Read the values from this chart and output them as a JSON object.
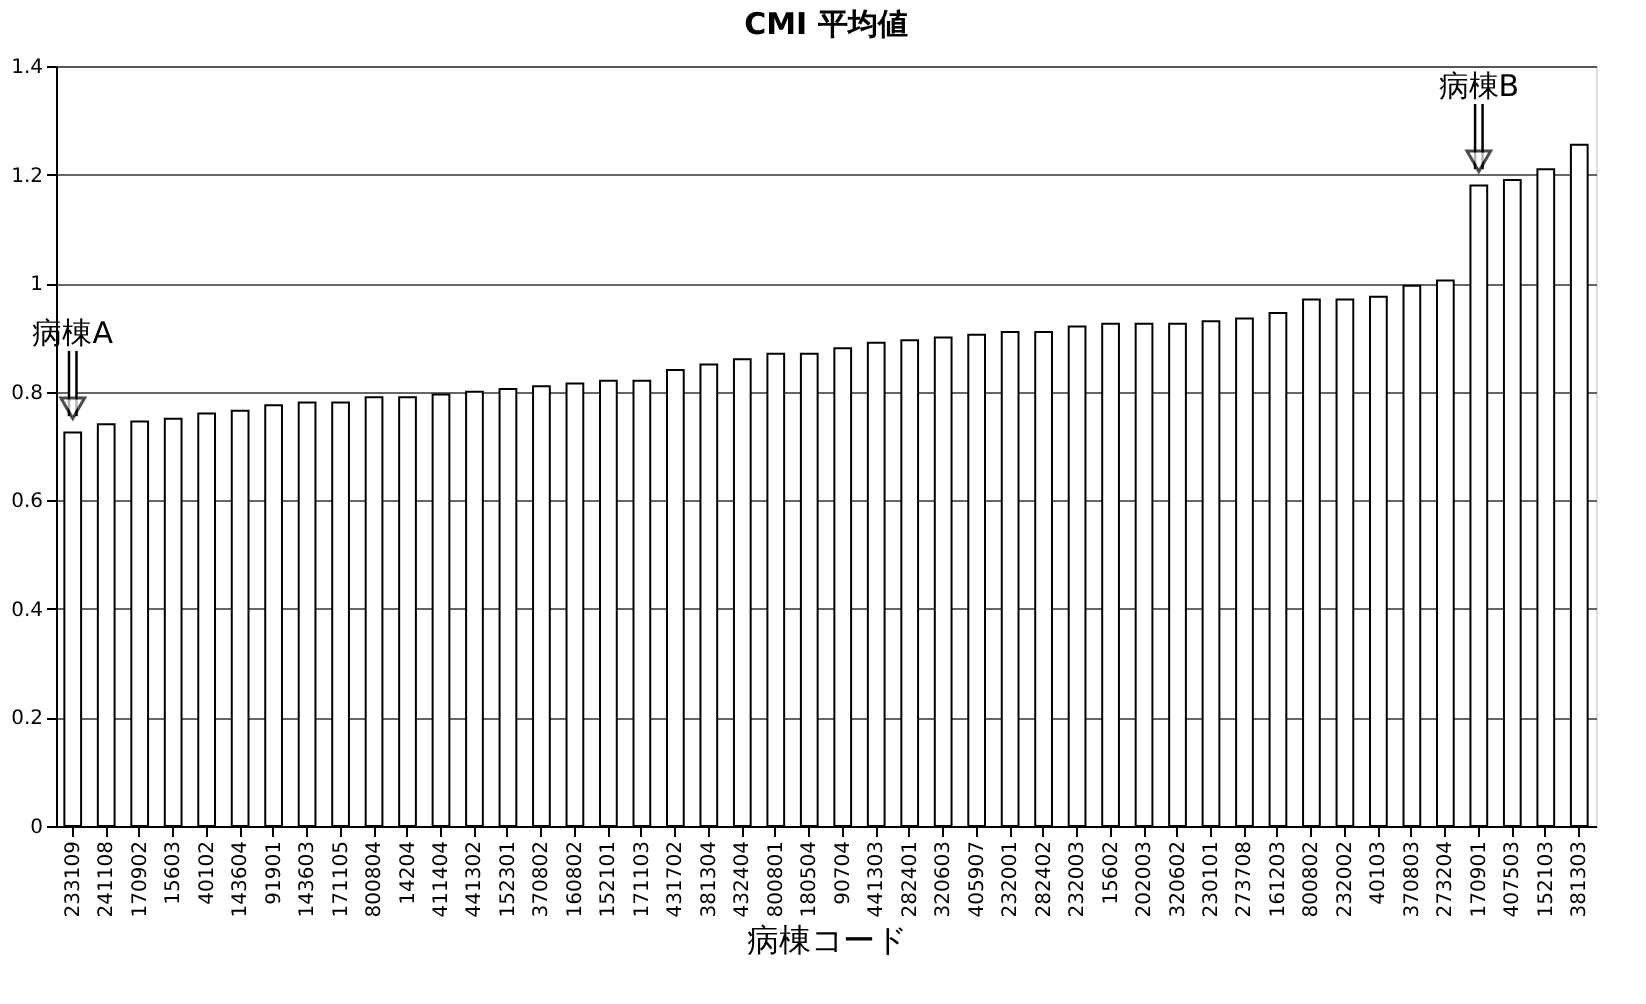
{
  "chart_data": {
    "type": "bar",
    "title": "CMI 平均値",
    "xlabel": "病棟コード",
    "categories": [
      "233109",
      "241108",
      "170902",
      "15603",
      "40102",
      "143604",
      "91901",
      "143603",
      "171105",
      "800804",
      "14204",
      "411404",
      "441302",
      "152301",
      "370802",
      "160802",
      "152101",
      "171103",
      "431702",
      "381304",
      "432404",
      "800801",
      "180504",
      "90704",
      "441303",
      "282401",
      "320603",
      "405907",
      "232001",
      "282402",
      "232003",
      "15602",
      "202003",
      "320602",
      "230101",
      "273708",
      "161203",
      "800802",
      "232002",
      "40103",
      "370803",
      "273204",
      "170901",
      "407503",
      "152103",
      "381303"
    ],
    "values": [
      0.725,
      0.74,
      0.745,
      0.75,
      0.76,
      0.765,
      0.775,
      0.78,
      0.78,
      0.79,
      0.79,
      0.795,
      0.8,
      0.805,
      0.81,
      0.815,
      0.82,
      0.82,
      0.84,
      0.85,
      0.86,
      0.87,
      0.87,
      0.88,
      0.89,
      0.895,
      0.9,
      0.905,
      0.91,
      0.91,
      0.92,
      0.925,
      0.925,
      0.925,
      0.93,
      0.935,
      0.945,
      0.97,
      0.97,
      0.975,
      0.995,
      1.005,
      1.18,
      1.19,
      1.21,
      1.255
    ],
    "color": "#ffffff",
    "ylim": [
      0,
      1.4
    ],
    "yticks": [
      0,
      0.2,
      0.4,
      0.6,
      0.8,
      1,
      1.2,
      1.4
    ],
    "grid": "y",
    "annotations": [
      {
        "text": "病棟A",
        "x": "233109",
        "y": 0.725
      },
      {
        "text": "病棟B",
        "x": "170901",
        "y": 1.18
      }
    ]
  }
}
